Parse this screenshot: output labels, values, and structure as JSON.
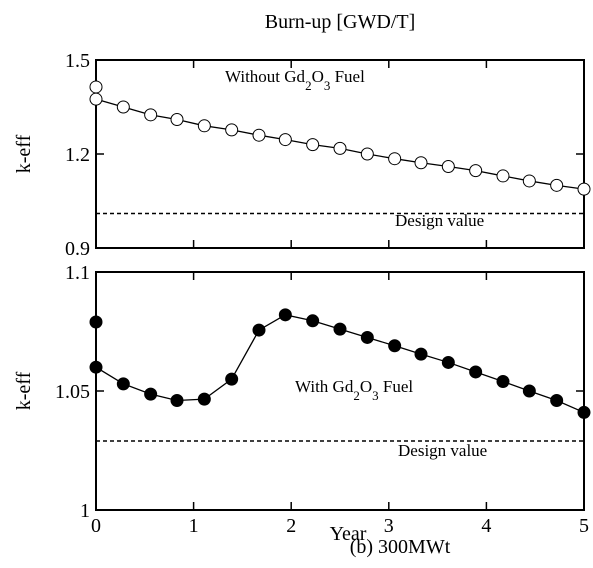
{
  "caption": "(b) 300MWt",
  "chart_data": [
    {
      "type": "line",
      "x2label": "Burn-up [GWD/T]",
      "ylabel": "k-eff",
      "annotation": "Without Gd2O3 Fuel",
      "reference_line": {
        "value": 1.01,
        "label": "Design value",
        "style": "dashed"
      },
      "xlim": [
        0,
        5
      ],
      "xticks": [
        0,
        1,
        2,
        3,
        4,
        5
      ],
      "show_xtick_labels": false,
      "ylim": [
        0.9,
        1.5
      ],
      "yticks": [
        0.9,
        1.2,
        1.5
      ],
      "series": [
        {
          "color": "#000000",
          "marker_fill": "#ffffff",
          "x": [
            0,
            0,
            0.28,
            0.56,
            0.83,
            1.11,
            1.39,
            1.67,
            1.94,
            2.22,
            2.5,
            2.78,
            3.06,
            3.33,
            3.61,
            3.89,
            4.17,
            4.44,
            4.72,
            5
          ],
          "values": [
            1.414,
            1.375,
            1.35,
            1.325,
            1.31,
            1.29,
            1.277,
            1.26,
            1.246,
            1.23,
            1.218,
            1.2,
            1.185,
            1.172,
            1.16,
            1.147,
            1.13,
            1.114,
            1.1,
            1.088
          ]
        }
      ]
    },
    {
      "type": "line",
      "xlabel": "Year",
      "ylabel": "k-eff",
      "annotation": "With Gd2O3 Fuel",
      "reference_line": {
        "value": 1.029,
        "label": "Design value",
        "style": "dashed"
      },
      "xlim": [
        0,
        5
      ],
      "xticks": [
        0,
        1,
        2,
        3,
        4,
        5
      ],
      "show_xtick_labels": true,
      "ylim": [
        1,
        1.1
      ],
      "yticks": [
        1,
        1.05,
        1.1
      ],
      "series": [
        {
          "color": "#000000",
          "marker_fill": "#000000",
          "x": [
            0,
            0,
            0.28,
            0.56,
            0.83,
            1.11,
            1.39,
            1.67,
            1.94,
            2.22,
            2.5,
            2.78,
            3.06,
            3.33,
            3.61,
            3.89,
            4.17,
            4.44,
            4.72,
            5
          ],
          "values": [
            1.079,
            1.06,
            1.053,
            1.0487,
            1.046,
            1.0466,
            1.055,
            1.0756,
            1.082,
            1.0795,
            1.076,
            1.0725,
            1.069,
            1.0655,
            1.062,
            1.058,
            1.054,
            1.05,
            1.046,
            1.041
          ]
        }
      ]
    }
  ]
}
